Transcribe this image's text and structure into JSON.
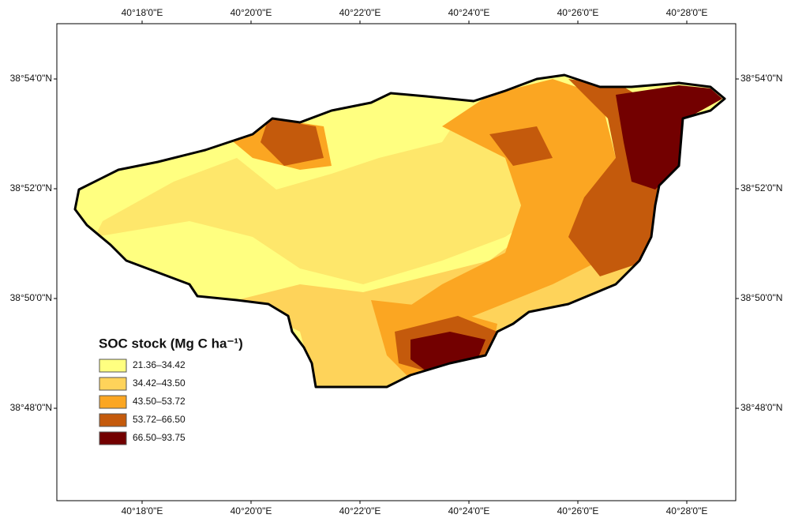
{
  "map": {
    "longitude_labels": [
      "40°18'0\"E",
      "40°20'0\"E",
      "40°22'0\"E",
      "40°24'0\"E",
      "40°26'0\"E",
      "40°28'0\"E"
    ],
    "latitude_labels": [
      "38°54'0\"N",
      "38°52'0\"N",
      "38°50'0\"N",
      "38°48'0\"N"
    ],
    "legend": {
      "title": "SOC stock (Mg C ha⁻¹)",
      "classes": [
        {
          "label": "21.36–34.42",
          "color": "#ffff80"
        },
        {
          "label": "34.42–43.50",
          "color": "#fed35a"
        },
        {
          "label": "43.50–53.72",
          "color": "#fba622"
        },
        {
          "label": "53.72–66.50",
          "color": "#c45a0c"
        },
        {
          "label": "66.50–93.75",
          "color": "#730000"
        }
      ]
    }
  }
}
